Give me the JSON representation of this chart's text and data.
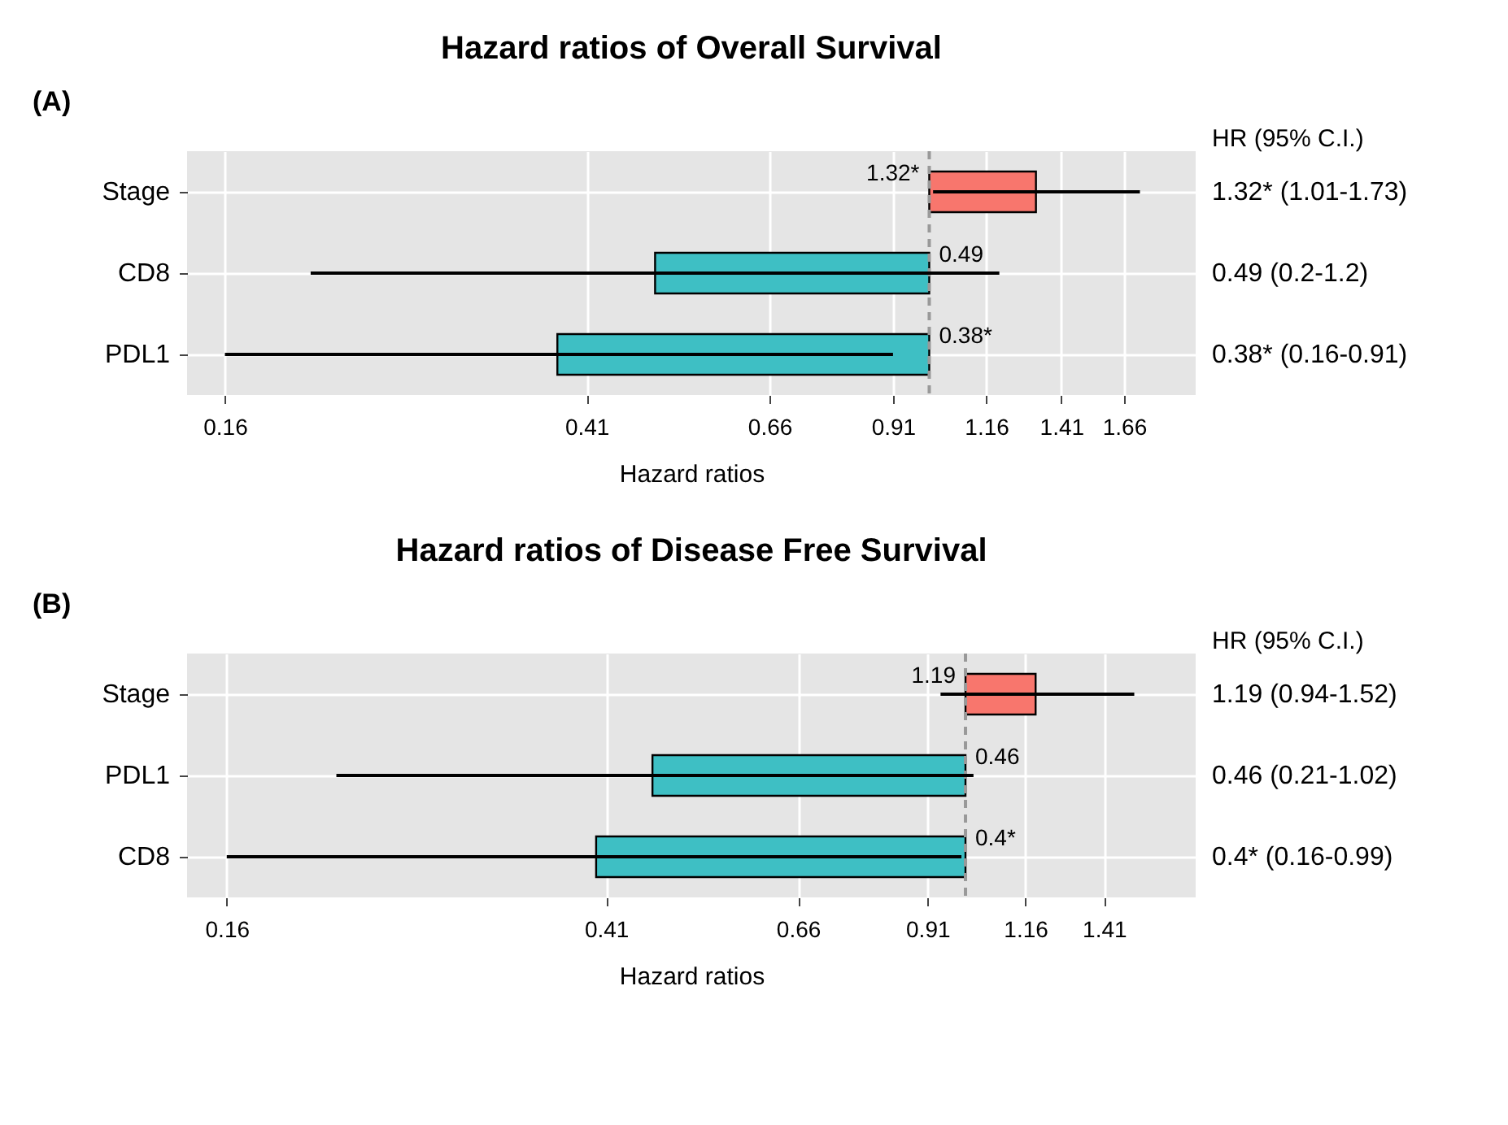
{
  "chart_data": [
    {
      "type": "bar",
      "orientation": "horizontal",
      "title": "Hazard ratios of Overall Survival",
      "xlabel": "Hazard ratios",
      "categories": [
        "Stage",
        "CD8",
        "PDL1"
      ],
      "base": [
        1,
        1,
        1
      ],
      "values": [
        0.32,
        -0.51,
        -0.62
      ],
      "colors": [
        "#f8766d",
        "#3ebfc4",
        "#3ebfc4"
      ],
      "errors": [
        [
          1.01,
          1.73
        ],
        [
          0.2,
          1.2
        ],
        [
          0.16,
          0.91
        ]
      ],
      "value_labels": [
        "1.32*",
        "0.49",
        "0.38*"
      ],
      "log": "x",
      "xlim": [
        0.145,
        2.0
      ],
      "xticks": [
        0.16,
        0.41,
        0.66,
        0.91,
        1.16,
        1.41,
        1.66
      ],
      "grid": true,
      "ref_lines": [
        {
          "axis": "x",
          "value": 1,
          "color": "#999999",
          "line_style": "dashed"
        }
      ],
      "annotations": [
        "(A)",
        "HR (95% C.I.)",
        "1.32* (1.01-1.73)",
        "0.49 (0.2-1.2)",
        "0.38* (0.16-0.91)"
      ]
    },
    {
      "type": "bar",
      "orientation": "horizontal",
      "title": "Hazard ratios of Disease Free Survival",
      "xlabel": "Hazard ratios",
      "categories": [
        "Stage",
        "PDL1",
        "CD8"
      ],
      "base": [
        1,
        1,
        1
      ],
      "values": [
        0.19,
        -0.54,
        -0.6
      ],
      "colors": [
        "#f8766d",
        "#3ebfc4",
        "#3ebfc4"
      ],
      "errors": [
        [
          0.94,
          1.52
        ],
        [
          0.21,
          1.02
        ],
        [
          0.16,
          0.99
        ]
      ],
      "value_labels": [
        "1.19",
        "0.46",
        "0.4*"
      ],
      "log": "x",
      "xlim": [
        0.145,
        1.77
      ],
      "xticks": [
        0.16,
        0.41,
        0.66,
        0.91,
        1.16,
        1.41
      ],
      "grid": true,
      "ref_lines": [
        {
          "axis": "x",
          "value": 1,
          "color": "#999999",
          "line_style": "dashed"
        }
      ],
      "annotations": [
        "(B)",
        "HR (95% C.I.)",
        "1.19 (0.94-1.52)",
        "0.46 (0.21-1.02)",
        "0.4* (0.16-0.99)"
      ]
    }
  ]
}
